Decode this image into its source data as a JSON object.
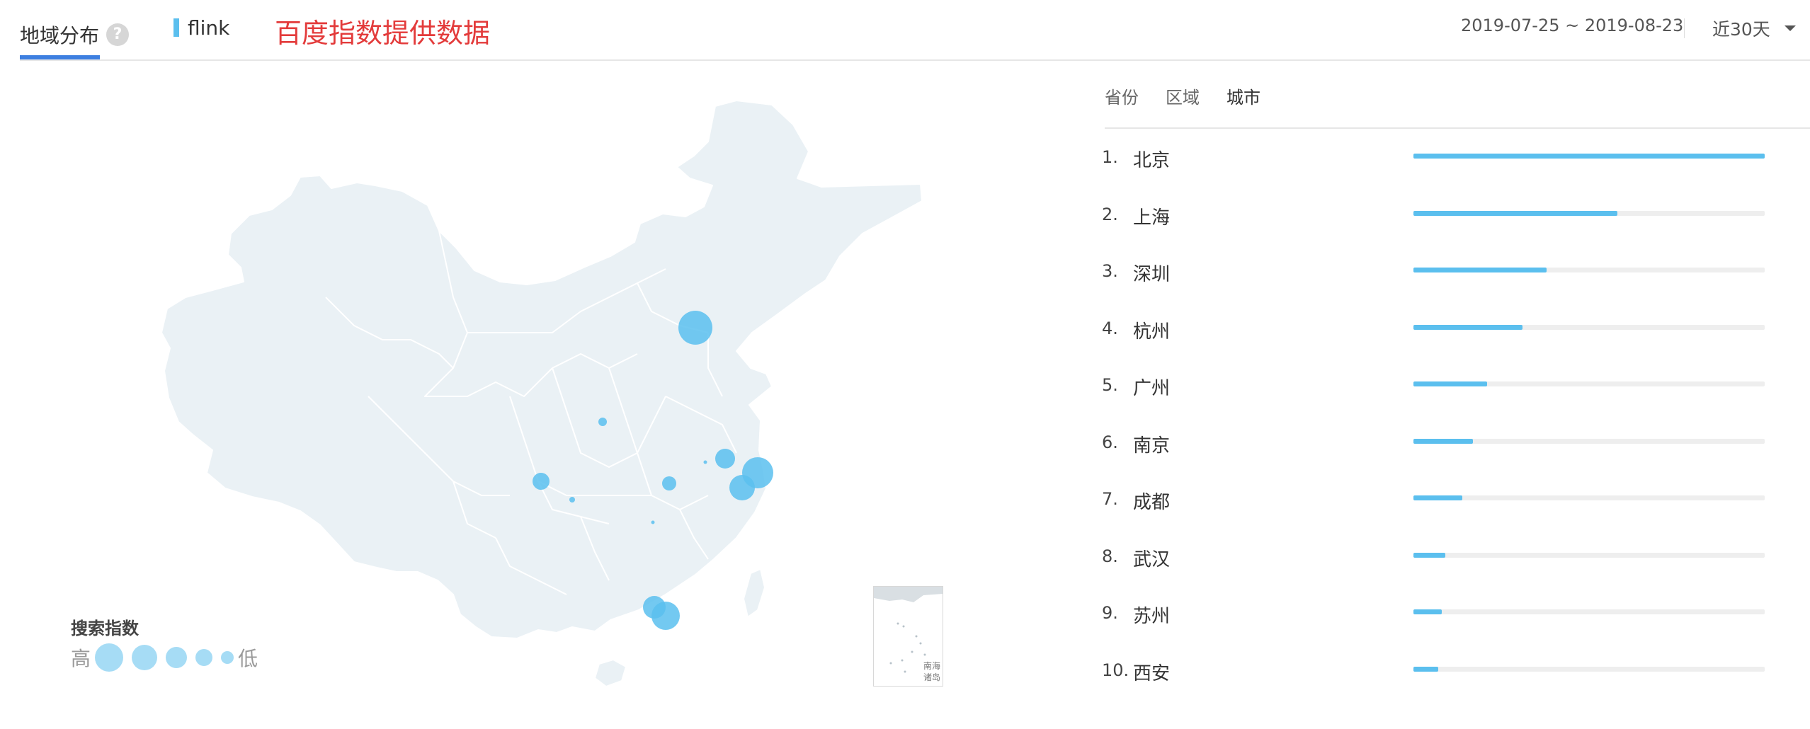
{
  "header": {
    "tab_label": "地域分布",
    "help_icon": "question-circle-icon",
    "keyword": "flink",
    "watermark": "百度指数提供数据",
    "date_range": "2019-07-25 ~ 2019-08-23",
    "period": "近30天"
  },
  "region_tabs": [
    {
      "label": "省份",
      "active": false
    },
    {
      "label": "区域",
      "active": false
    },
    {
      "label": "城市",
      "active": true
    }
  ],
  "legend": {
    "title": "搜索指数",
    "high": "高",
    "low": "低"
  },
  "inset_label": [
    "南海",
    "诸岛"
  ],
  "colors": {
    "accent": "#5bbfee",
    "bubble": "#5bbfee",
    "map_fill": "#eaf1f5",
    "watermark": "#e33b3b",
    "tab_underline": "#3d7fe0"
  },
  "chart_data": {
    "type": "bar",
    "categories": [
      "北京",
      "上海",
      "深圳",
      "杭州",
      "广州",
      "南京",
      "成都",
      "武汉",
      "苏州",
      "西安"
    ],
    "values": [
      100,
      58,
      38,
      31,
      21,
      17,
      14,
      9,
      8,
      7
    ],
    "value_scale": "relative (北京 = 100)",
    "xlim": [
      0,
      100
    ],
    "grid": false,
    "legend": "none"
  },
  "map_bubbles": [
    {
      "city": "北京",
      "value": 100
    },
    {
      "city": "上海",
      "value": 58
    },
    {
      "city": "深圳",
      "value": 38
    },
    {
      "city": "杭州",
      "value": 31
    },
    {
      "city": "广州",
      "value": 21
    },
    {
      "city": "南京",
      "value": 17
    },
    {
      "city": "成都",
      "value": 14
    },
    {
      "city": "武汉",
      "value": 9
    },
    {
      "city": "西安",
      "value": 7
    },
    {
      "city": "重庆",
      "value": 3
    },
    {
      "city": "合肥",
      "value": 2
    },
    {
      "city": "长沙",
      "value": 2
    }
  ]
}
